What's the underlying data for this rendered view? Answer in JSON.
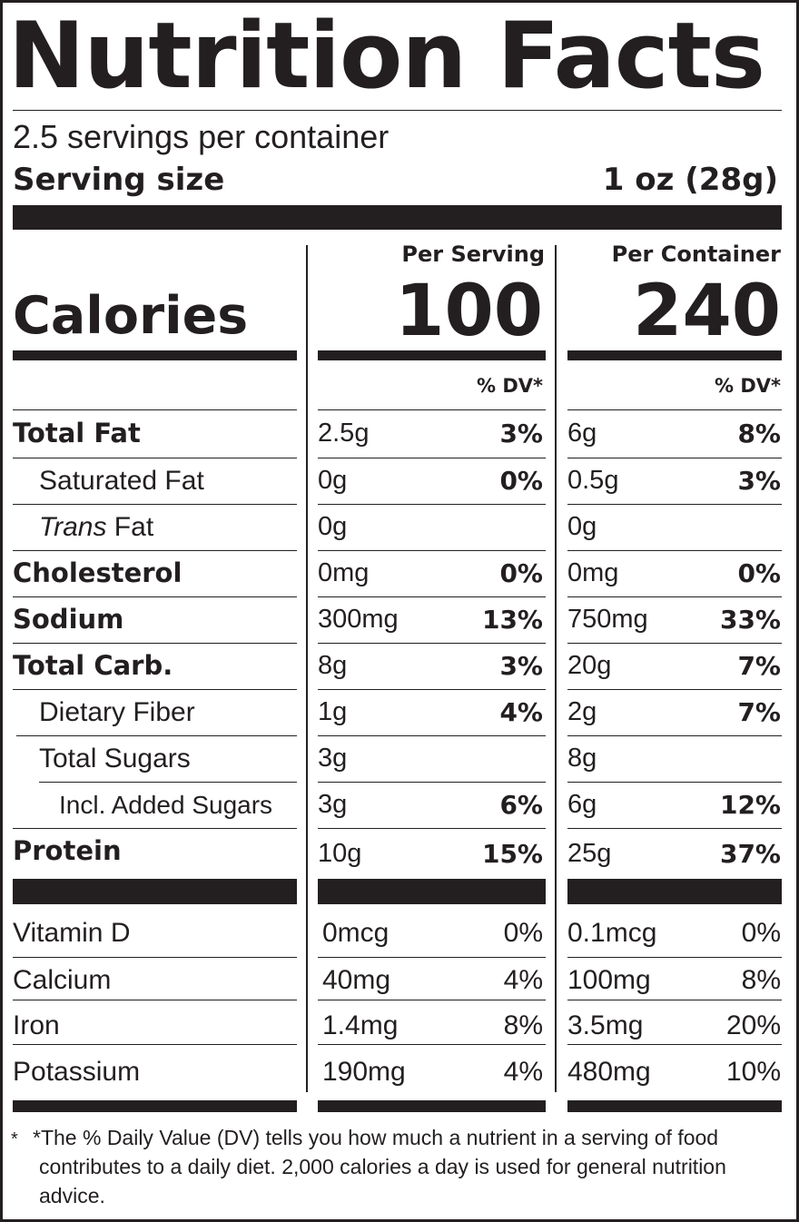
{
  "title": "Nutrition Facts",
  "servings_per_container": "2.5 servings per container",
  "serving_size": {
    "label": "Serving size",
    "value": "1 oz (28g)"
  },
  "columns": {
    "per_serving": "Per Serving",
    "per_container": "Per Container"
  },
  "calories": {
    "label": "Calories",
    "per_serving": "100",
    "per_container": "240"
  },
  "dv_header": "% DV*",
  "nutrients": [
    {
      "label": "Total Fat",
      "ps_amount": "2.5g",
      "ps_dv": "3%",
      "pc_amount": "6g",
      "pc_dv": "8%"
    },
    {
      "label": "Saturated Fat",
      "ps_amount": "0g",
      "ps_dv": "0%",
      "pc_amount": "0.5g",
      "pc_dv": "3%"
    },
    {
      "label_italic": "Trans",
      "label_rest": " Fat",
      "ps_amount": "0g",
      "ps_dv": "",
      "pc_amount": "0g",
      "pc_dv": ""
    },
    {
      "label": "Cholesterol",
      "ps_amount": "0mg",
      "ps_dv": "0%",
      "pc_amount": "0mg",
      "pc_dv": "0%"
    },
    {
      "label": "Sodium",
      "ps_amount": "300mg",
      "ps_dv": "13%",
      "pc_amount": "750mg",
      "pc_dv": "33%"
    },
    {
      "label": "Total Carb.",
      "ps_amount": "8g",
      "ps_dv": "3%",
      "pc_amount": "20g",
      "pc_dv": "7%"
    },
    {
      "label": "Dietary Fiber",
      "ps_amount": "1g",
      "ps_dv": "4%",
      "pc_amount": "2g",
      "pc_dv": "7%"
    },
    {
      "label": "Total Sugars",
      "ps_amount": "3g",
      "ps_dv": "",
      "pc_amount": "8g",
      "pc_dv": ""
    },
    {
      "label": "Incl. Added Sugars",
      "ps_amount": "3g",
      "ps_dv": "6%",
      "pc_amount": "6g",
      "pc_dv": "12%"
    },
    {
      "label": "Protein",
      "ps_amount": "10g",
      "ps_dv": "15%",
      "pc_amount": "25g",
      "pc_dv": "37%"
    }
  ],
  "vitamins": [
    {
      "label": "Vitamin D",
      "ps_amount": "0mcg",
      "ps_dv": "0%",
      "pc_amount": "0.1mcg",
      "pc_dv": "0%"
    },
    {
      "label": "Calcium",
      "ps_amount": "40mg",
      "ps_dv": "4%",
      "pc_amount": "100mg",
      "pc_dv": "8%"
    },
    {
      "label": "Iron",
      "ps_amount": "1.4mg",
      "ps_dv": "8%",
      "pc_amount": "3.5mg",
      "pc_dv": "20%"
    },
    {
      "label": "Potassium",
      "ps_amount": "190mg",
      "ps_dv": "4%",
      "pc_amount": "480mg",
      "pc_dv": "10%"
    }
  ],
  "footnote": {
    "marker": "*",
    "text": "*The % Daily Value (DV) tells you how much a nutrient in a serving of food contributes to a daily diet. 2,000 calories a day is used for general nutrition advice."
  }
}
